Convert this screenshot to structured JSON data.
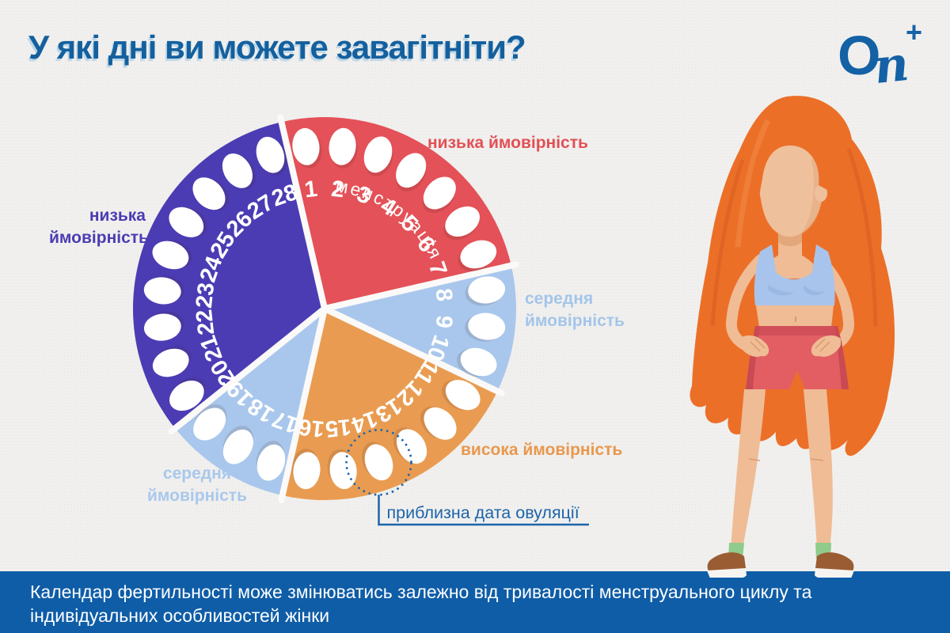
{
  "title": "У які дні ви можете завагітніти?",
  "logo": {
    "o": "O",
    "n": "n",
    "plus": "+",
    "color": "#1461a5"
  },
  "chart_data": {
    "type": "pie",
    "description": "28-day menstrual cycle fertility wheel, each day shown as a white pill",
    "total_days": 28,
    "start_angle_deg": -13,
    "segments": [
      {
        "label": "низька ймовірність",
        "inner_label": "менструація",
        "days_from": 1,
        "days_to": 7,
        "value": 7,
        "color": "#e45158"
      },
      {
        "label": "середня ймовірність",
        "inner_label": "",
        "days_from": 8,
        "days_to": 10,
        "value": 3,
        "color": "#a9c7ec"
      },
      {
        "label": "висока ймовірність",
        "inner_label": "",
        "days_from": 11,
        "days_to": 16,
        "value": 6,
        "color": "#e99c51"
      },
      {
        "label": "середня ймовірність",
        "inner_label": "",
        "days_from": 17,
        "days_to": 19,
        "value": 3,
        "color": "#a9c7ec"
      },
      {
        "label": "низька ймовірність",
        "inner_label": "",
        "days_from": 20,
        "days_to": 28,
        "value": 9,
        "color": "#4b3cb4"
      }
    ],
    "annotation": {
      "day": 14,
      "label": "приблизна дата овуляції",
      "color": "#1c64aa"
    }
  },
  "labels": {
    "low_top": "низька ймовірність",
    "medium_right": "середня\nймовірність",
    "high": "висока ймовірність",
    "medium_bottom": "середня\nймовірність",
    "low_left": "низька\nймовірність"
  },
  "footer": {
    "line1": "Календар фертильності може змінюватись залежно від тривалості менструального циклу та",
    "line2": "індивідуальних особливостей жінки"
  },
  "colors": {
    "background": "#f1f0ee",
    "title_blue": "#14609e",
    "banner_blue": "#0f5da7",
    "gap_white": "#fbfaf8",
    "pill_white": "#ffffff"
  }
}
